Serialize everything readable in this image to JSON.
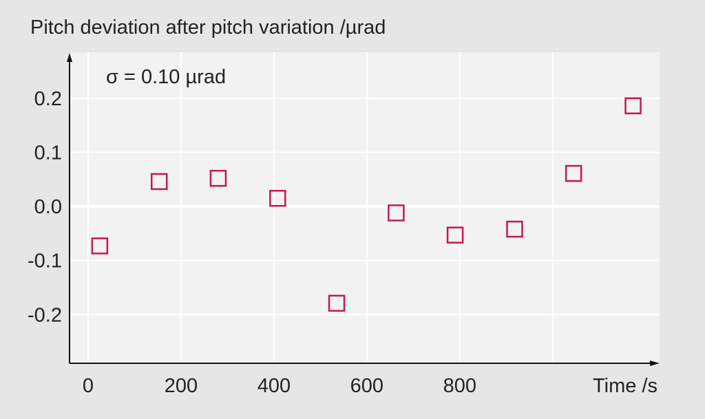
{
  "chart_data": {
    "type": "scatter",
    "title": "Pitch deviation after pitch variation /µrad",
    "xlabel": "Time /s",
    "ylabel": "",
    "annotation": "σ  = 0.10 µrad",
    "xlim": [
      -40,
      1230
    ],
    "ylim": [
      -0.29,
      0.285
    ],
    "x_ticks": [
      0,
      200,
      400,
      600,
      800
    ],
    "x_grid": [
      0,
      200,
      400,
      600,
      800,
      1000
    ],
    "y_ticks": [
      0.2,
      0.1,
      0.0,
      -0.1,
      -0.2
    ],
    "y_tick_labels": [
      "0.2",
      "0.1",
      "0.0",
      "-0.1",
      "-0.2"
    ],
    "grid": true,
    "series": [
      {
        "marker": "open-square",
        "color": "#c8174a",
        "x": [
          25,
          153,
          280,
          408,
          535,
          663,
          790,
          918,
          1045,
          1173
        ],
        "y": [
          -0.073,
          0.046,
          0.052,
          0.015,
          -0.179,
          -0.012,
          -0.053,
          -0.042,
          0.061,
          0.186
        ]
      }
    ]
  }
}
